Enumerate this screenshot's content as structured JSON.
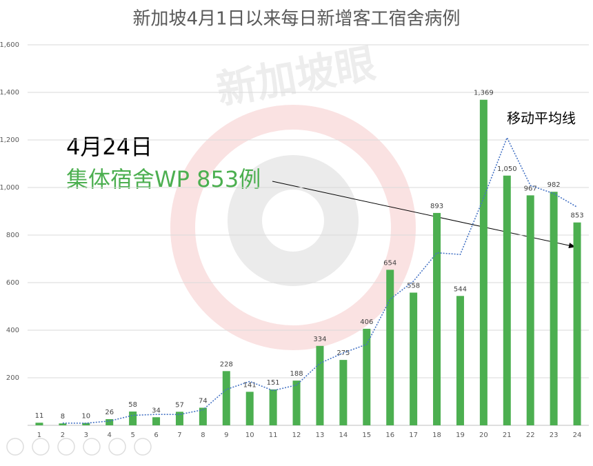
{
  "chart_data": {
    "type": "bar",
    "title": "新加坡4月1日以来每日新增客工宿舍病例",
    "categories": [
      "1",
      "2",
      "3",
      "4",
      "5",
      "6",
      "7",
      "8",
      "9",
      "10",
      "11",
      "12",
      "13",
      "14",
      "15",
      "16",
      "17",
      "18",
      "19",
      "20",
      "21",
      "22",
      "23",
      "24"
    ],
    "series": [
      {
        "name": "每日新增",
        "color": "#4caf50",
        "values": [
          11,
          8,
          10,
          26,
          58,
          34,
          57,
          74,
          228,
          141,
          151,
          188,
          334,
          275,
          406,
          654,
          558,
          893,
          544,
          1369,
          1050,
          967,
          982,
          853
        ],
        "value_labels": [
          "11",
          "8",
          "10",
          "26",
          "58",
          "34",
          "57",
          "74",
          "228",
          "141",
          "151",
          "188",
          "334",
          "275",
          "406",
          "654",
          "558",
          "893",
          "544",
          "1,369",
          "1,050",
          "967",
          "982",
          "853"
        ]
      },
      {
        "name": "移动平均线",
        "type": "line",
        "color": "#4472c4",
        "values": [
          null,
          9.5,
          9,
          18,
          42,
          46,
          45.5,
          65.5,
          151,
          184.5,
          146,
          169.5,
          261,
          304.5,
          340.5,
          530,
          606,
          725.5,
          718.5,
          956.5,
          1209.5,
          1008.5,
          974.5,
          917.5
        ]
      }
    ],
    "ylim": [
      0,
      1600
    ],
    "yticks": [
      200,
      400,
      600,
      800,
      {
        "value": 1000,
        "label": "1,000"
      },
      {
        "value": 1200,
        "label": "1,200"
      },
      {
        "value": 1400,
        "label": "1,400"
      },
      {
        "value": 1600,
        "label": "1,600"
      }
    ],
    "grid": true,
    "annotations": [
      "4月24日",
      "集体宿舍WP 853例"
    ],
    "watermark": "新加坡眼"
  }
}
